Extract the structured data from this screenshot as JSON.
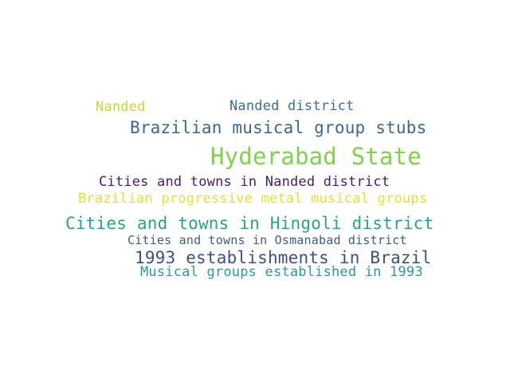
{
  "word_cloud": {
    "words": [
      {
        "text": "Nanded",
        "color": "#c2dc3a"
      },
      {
        "text": "Nanded district",
        "color": "#3c6e95"
      },
      {
        "text": "Brazilian musical group stubs",
        "color": "#3e6690"
      },
      {
        "text": "Hyderabad State",
        "color": "#7fd24a"
      },
      {
        "text": "Cities and towns in Nanded district",
        "color": "#4a1b63"
      },
      {
        "text": "Brazilian progressive metal musical groups",
        "color": "#e4df3a"
      },
      {
        "text": "Cities and towns in Hingoli district",
        "color": "#2aa38a"
      },
      {
        "text": "Cities and towns in Osmanabad district",
        "color": "#3b5b8d"
      },
      {
        "text": "1993 establishments in Brazil",
        "color": "#3b4f8a"
      },
      {
        "text": "Musical groups established in 1993",
        "color": "#2c9a96"
      }
    ]
  }
}
